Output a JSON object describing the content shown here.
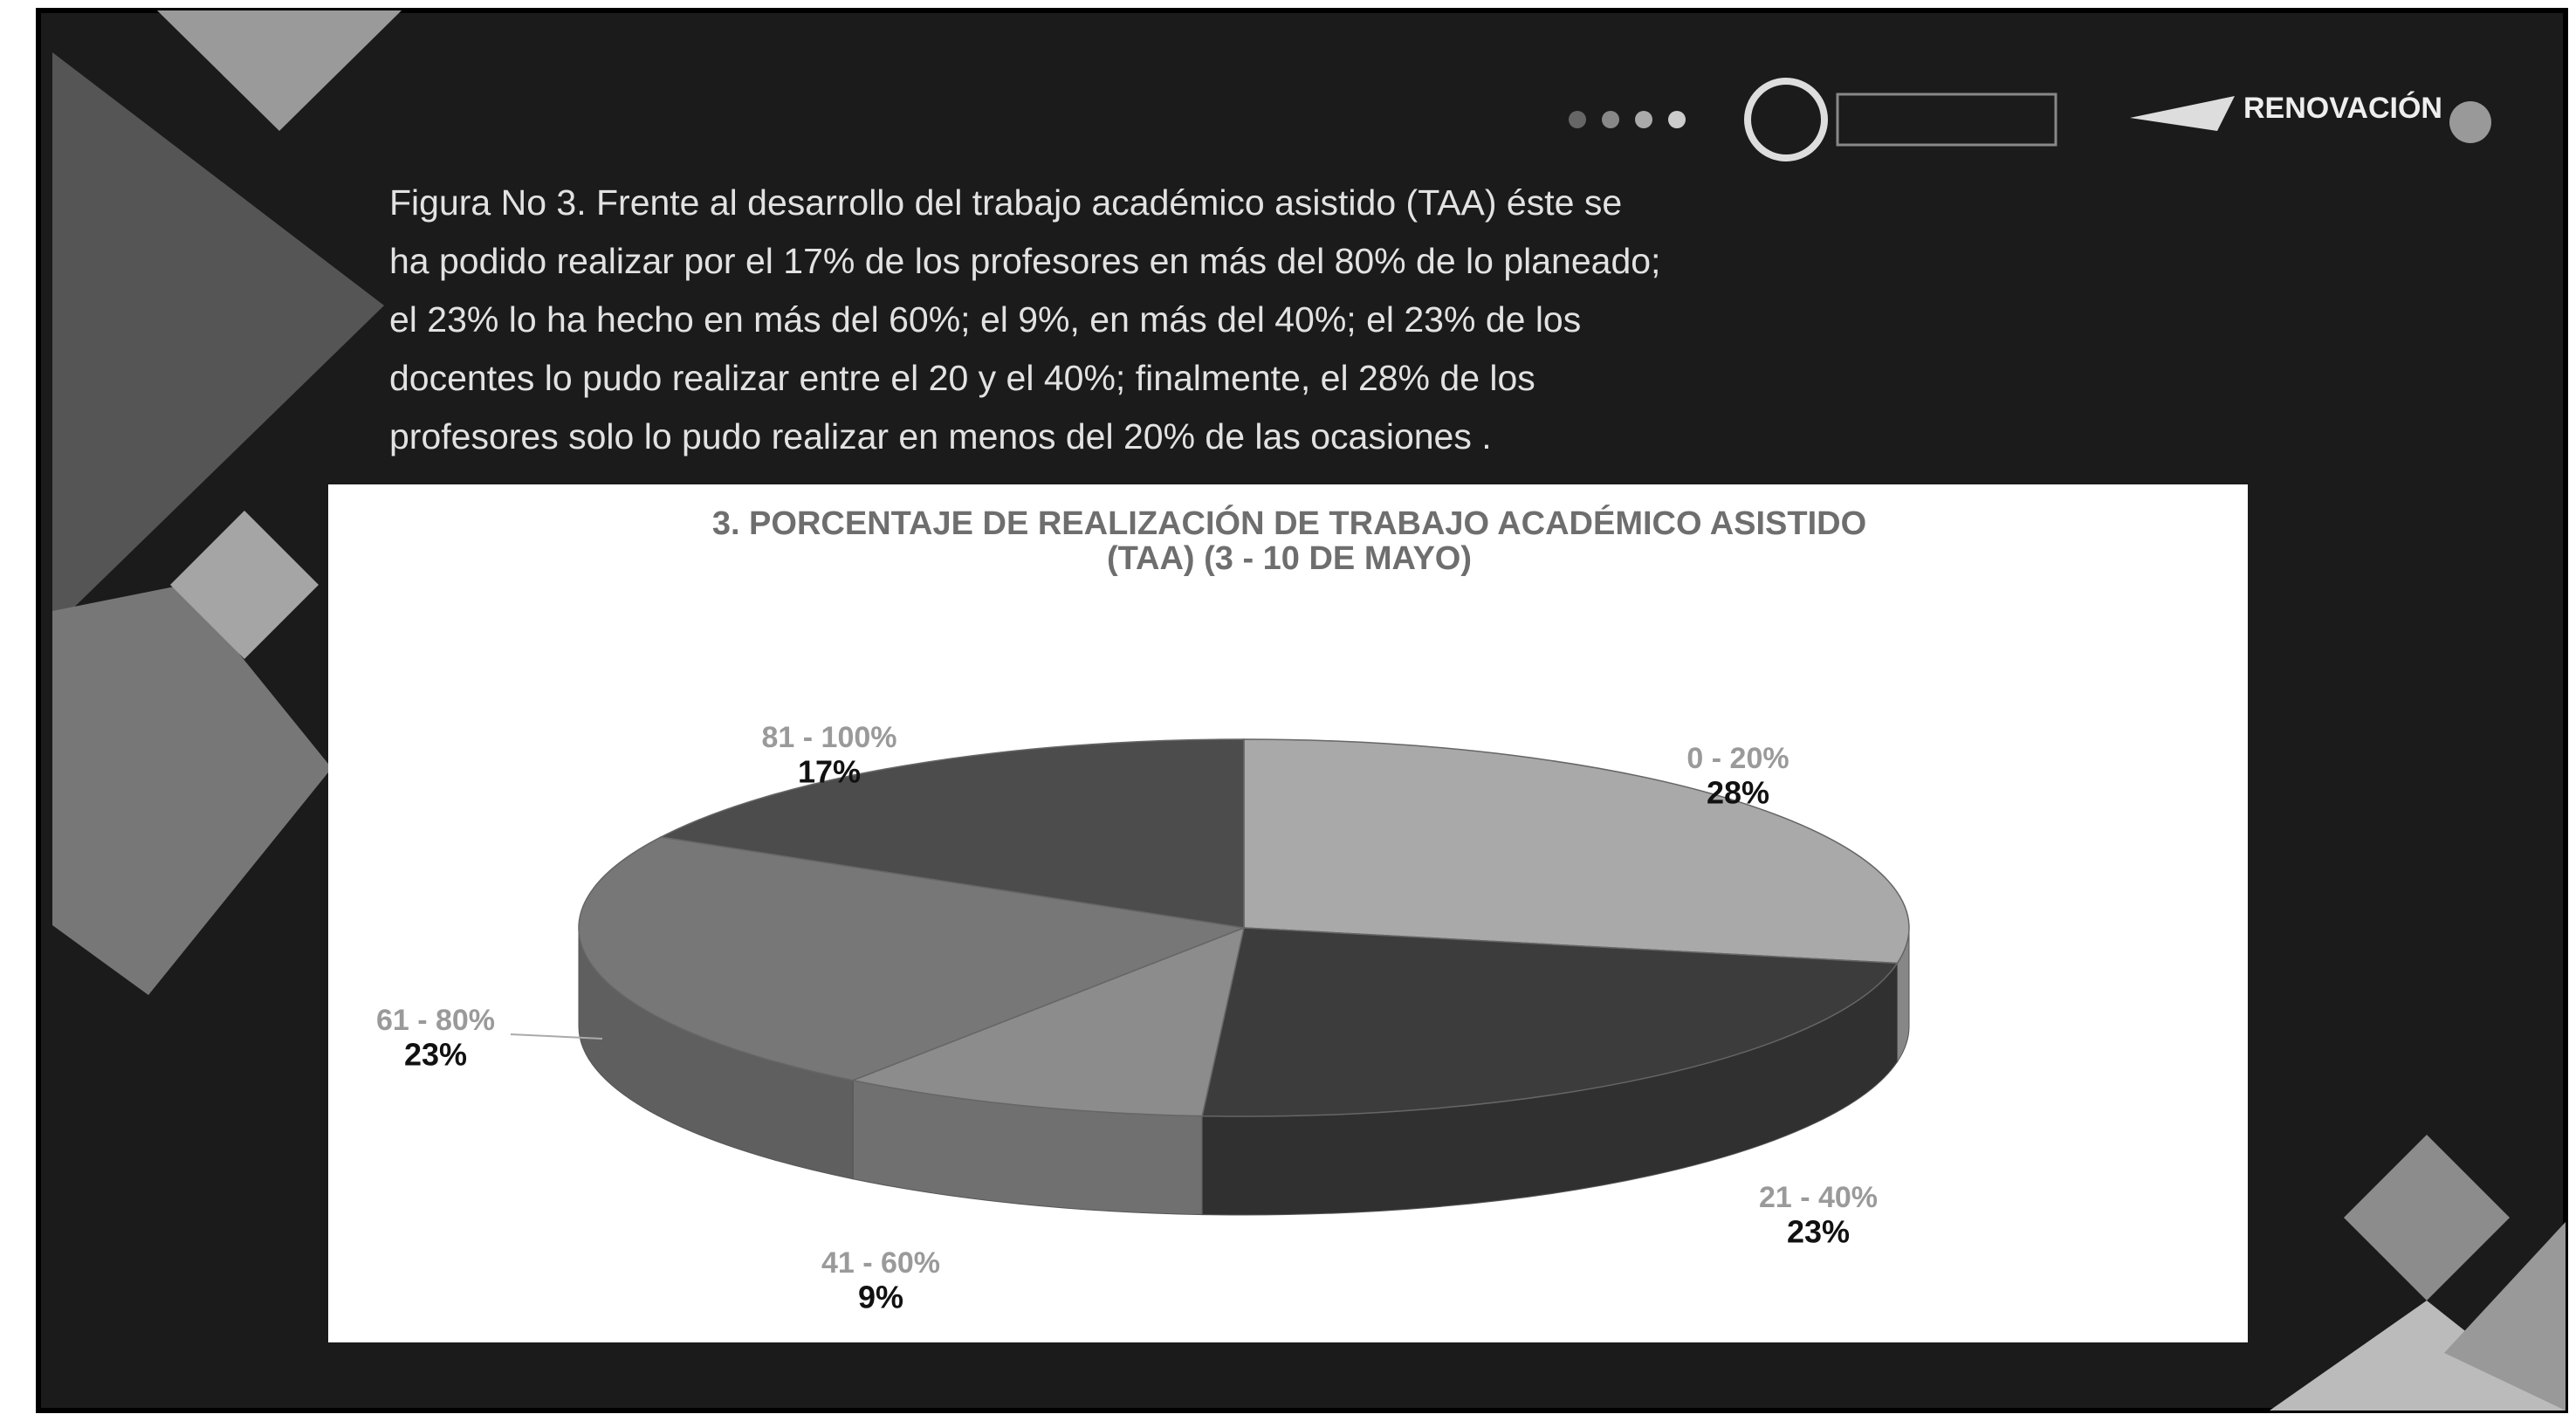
{
  "slide": {
    "caption_lines": [
      "Figura No 3.   Frente al desarrollo del trabajo académico asistido (TAA) éste se",
      "ha podido realizar por el 17% de los profesores en más del 80% de lo planeado;",
      "el 23% lo ha hecho en más del 60%; el 9%, en más del 40%; el 23% de los",
      "docentes lo pudo realizar entre el 20 y el 40%; finalmente, el 28% de los",
      "profesores solo lo pudo realizar en menos del 20% de las ocasiones ."
    ],
    "logo_text": "RENOVACIÓN"
  },
  "chart_data": {
    "type": "pie",
    "title": "3. PORCENTAJE DE REALIZACIÓN  DE TRABAJO ACADÉMICO ASISTIDO (TAA) (3 - 10 DE MAYO)",
    "categories": [
      "0 - 20%",
      "21 - 40%",
      "41 - 60%",
      "61 - 80%",
      "81 - 100%"
    ],
    "values": [
      28,
      23,
      9,
      23,
      17
    ],
    "value_labels": [
      "28%",
      "23%",
      "9%",
      "23%",
      "17%"
    ],
    "colors": [
      "#a9a9a9",
      "#3c3c3c",
      "#8c8c8c",
      "#777777",
      "#4c4c4c"
    ]
  }
}
